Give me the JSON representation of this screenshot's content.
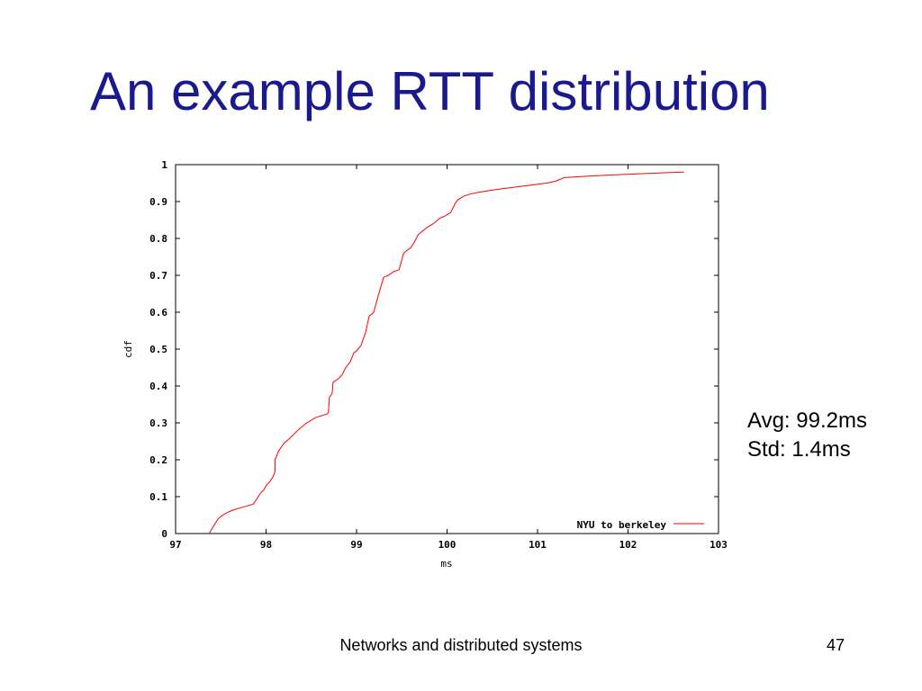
{
  "slide": {
    "title": "An example RTT distribution",
    "stats": {
      "avg": "Avg: 99.2ms",
      "std": "Std: 1.4ms"
    },
    "footer": "Networks and distributed systems",
    "page_number": "47"
  },
  "chart_data": {
    "type": "line",
    "xlabel": "ms",
    "ylabel": "cdf",
    "xlim": [
      97,
      103
    ],
    "ylim": [
      0,
      1
    ],
    "xticks": [
      "97",
      "98",
      "99",
      "100",
      "101",
      "102",
      "103"
    ],
    "yticks": [
      "0",
      "0.1",
      "0.2",
      "0.3",
      "0.4",
      "0.5",
      "0.6",
      "0.7",
      "0.8",
      "0.9",
      "1"
    ],
    "grid": false,
    "legend_position": "bottom-right",
    "series": [
      {
        "name": "NYU to berkeley",
        "color": "#ff0000",
        "x": [
          97.37,
          97.42,
          97.47,
          97.52,
          97.58,
          97.65,
          97.72,
          97.79,
          97.86,
          97.9,
          97.94,
          97.98,
          98.0,
          98.04,
          98.08,
          98.1,
          98.1,
          98.14,
          98.2,
          98.27,
          98.35,
          98.4,
          98.45,
          98.55,
          98.62,
          98.68,
          98.69,
          98.7,
          98.73,
          98.74,
          98.8,
          98.84,
          98.88,
          98.93,
          98.97,
          99.0,
          99.05,
          99.1,
          99.14,
          99.17,
          99.19,
          99.24,
          99.3,
          99.35,
          99.41,
          99.47,
          99.52,
          99.57,
          99.6,
          99.65,
          99.68,
          99.73,
          99.78,
          99.85,
          99.92,
          99.97,
          100.04,
          100.09,
          100.12,
          100.19,
          100.25,
          100.35,
          100.47,
          100.62,
          100.78,
          100.94,
          101.1,
          101.2,
          101.3,
          101.5,
          101.8,
          102.1,
          102.4,
          102.62
        ],
        "y": [
          0.0,
          0.02,
          0.04,
          0.05,
          0.058,
          0.065,
          0.07,
          0.075,
          0.08,
          0.095,
          0.11,
          0.12,
          0.13,
          0.14,
          0.155,
          0.17,
          0.2,
          0.225,
          0.245,
          0.26,
          0.28,
          0.29,
          0.3,
          0.315,
          0.32,
          0.325,
          0.33,
          0.37,
          0.38,
          0.41,
          0.42,
          0.43,
          0.45,
          0.465,
          0.49,
          0.495,
          0.51,
          0.545,
          0.59,
          0.595,
          0.6,
          0.645,
          0.695,
          0.7,
          0.71,
          0.715,
          0.76,
          0.77,
          0.775,
          0.795,
          0.81,
          0.82,
          0.83,
          0.84,
          0.855,
          0.86,
          0.87,
          0.895,
          0.905,
          0.915,
          0.92,
          0.925,
          0.93,
          0.935,
          0.94,
          0.945,
          0.95,
          0.955,
          0.965,
          0.968,
          0.972,
          0.975,
          0.978,
          0.98
        ]
      }
    ]
  }
}
